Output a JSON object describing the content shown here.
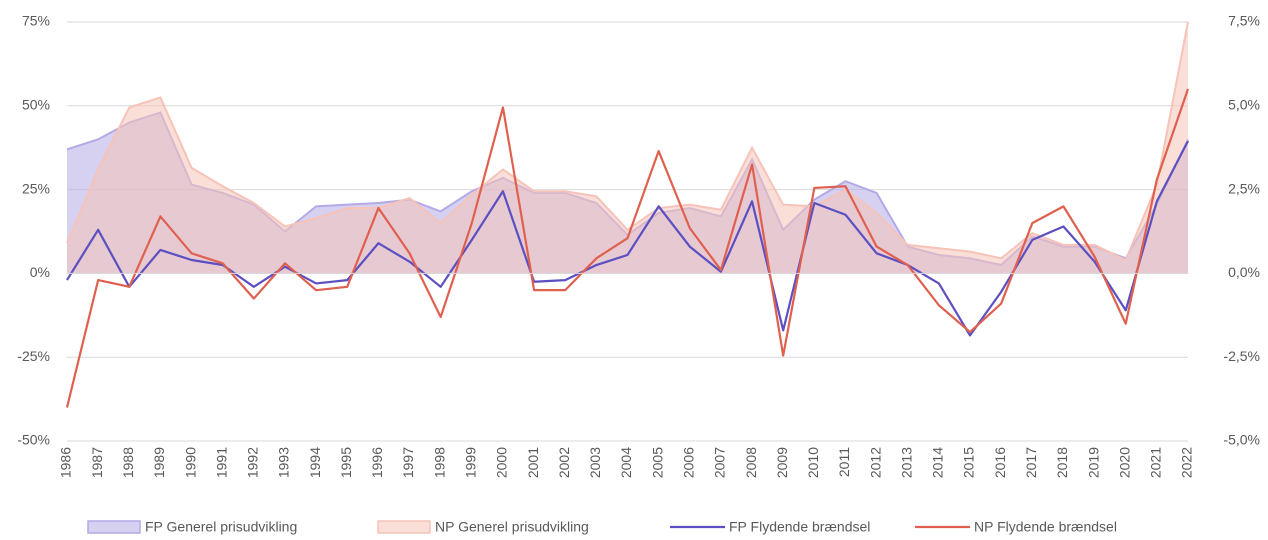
{
  "chart_data": {
    "type": "combo",
    "categories": [
      "1986",
      "1987",
      "1988",
      "1989",
      "1990",
      "1991",
      "1992",
      "1993",
      "1994",
      "1995",
      "1996",
      "1997",
      "1998",
      "1999",
      "2000",
      "2001",
      "2002",
      "2003",
      "2004",
      "2005",
      "2006",
      "2007",
      "2008",
      "2009",
      "2010",
      "2011",
      "2012",
      "2013",
      "2014",
      "2015",
      "2016",
      "2017",
      "2018",
      "2019",
      "2020",
      "2021",
      "2022"
    ],
    "ylim": [
      -50,
      75
    ],
    "yticks": [
      {
        "value": -50,
        "label": "-50%"
      },
      {
        "value": -25,
        "label": "-25%"
      },
      {
        "value": 0,
        "label": "0%"
      },
      {
        "value": 25,
        "label": "25%"
      },
      {
        "value": 50,
        "label": "50%"
      },
      {
        "value": 75,
        "label": "75%"
      }
    ],
    "y2lim": [
      -5,
      7.5
    ],
    "y2ticks": [
      {
        "value": -5,
        "label": "-5,0%"
      },
      {
        "value": -2.5,
        "label": "-2,5%"
      },
      {
        "value": 0,
        "label": "0,0%"
      },
      {
        "value": 2.5,
        "label": "2,5%"
      },
      {
        "value": 5,
        "label": "5,0%"
      },
      {
        "value": 7.5,
        "label": "7,5%"
      }
    ],
    "grid": true,
    "legend": "bottom",
    "series": [
      {
        "name": "FP Generel prisudvikling",
        "type": "area",
        "axis": "y2",
        "color": "#b4aae6",
        "values": [
          3.7,
          4.0,
          4.5,
          4.8,
          2.65,
          2.4,
          2.05,
          1.25,
          2.0,
          2.05,
          2.1,
          2.2,
          1.85,
          2.45,
          2.85,
          2.4,
          2.4,
          2.1,
          1.15,
          1.8,
          1.95,
          1.7,
          3.4,
          1.3,
          2.2,
          2.75,
          2.4,
          0.8,
          0.55,
          0.45,
          0.25,
          1.1,
          0.8,
          0.8,
          0.45,
          2.05,
          4.0
        ]
      },
      {
        "name": "NP Generel prisudvikling",
        "type": "area",
        "axis": "y2",
        "color": "#f6c3b8",
        "values": [
          0.9,
          3.1,
          4.95,
          5.25,
          3.15,
          2.6,
          2.1,
          1.4,
          1.65,
          1.95,
          1.95,
          2.25,
          1.5,
          2.35,
          3.1,
          2.45,
          2.45,
          2.3,
          1.3,
          1.95,
          2.05,
          1.9,
          3.75,
          2.05,
          2.0,
          2.5,
          1.8,
          0.85,
          0.75,
          0.65,
          0.45,
          1.2,
          0.85,
          0.85,
          0.4,
          2.65,
          7.5
        ]
      },
      {
        "name": "FP Flydende brændsel",
        "type": "line",
        "color": "#5b4fc2",
        "values": [
          -2,
          13,
          -4,
          7,
          4,
          2.5,
          -4,
          2,
          -3,
          -2,
          9,
          3.5,
          -4,
          10,
          24.5,
          -2.5,
          -2,
          2.5,
          5.5,
          20,
          8,
          0.5,
          21.5,
          -17,
          21,
          17.5,
          6,
          2.5,
          -3,
          -18.5,
          -5.5,
          10,
          14,
          3.5,
          -11,
          21.5,
          39.5
        ]
      },
      {
        "name": "NP Flydende brændsel",
        "type": "line",
        "color": "#e0604f",
        "values": [
          -40,
          -2,
          -4,
          17,
          6,
          3,
          -7.5,
          3,
          -5,
          -4,
          19.5,
          6,
          -13,
          15,
          49.5,
          -5,
          -5,
          4.5,
          10.5,
          36.5,
          13.5,
          1,
          32.5,
          -24.5,
          25.5,
          26,
          8,
          2.5,
          -9.5,
          -17.5,
          -9,
          15,
          20,
          5,
          -15,
          28,
          55
        ]
      }
    ]
  }
}
